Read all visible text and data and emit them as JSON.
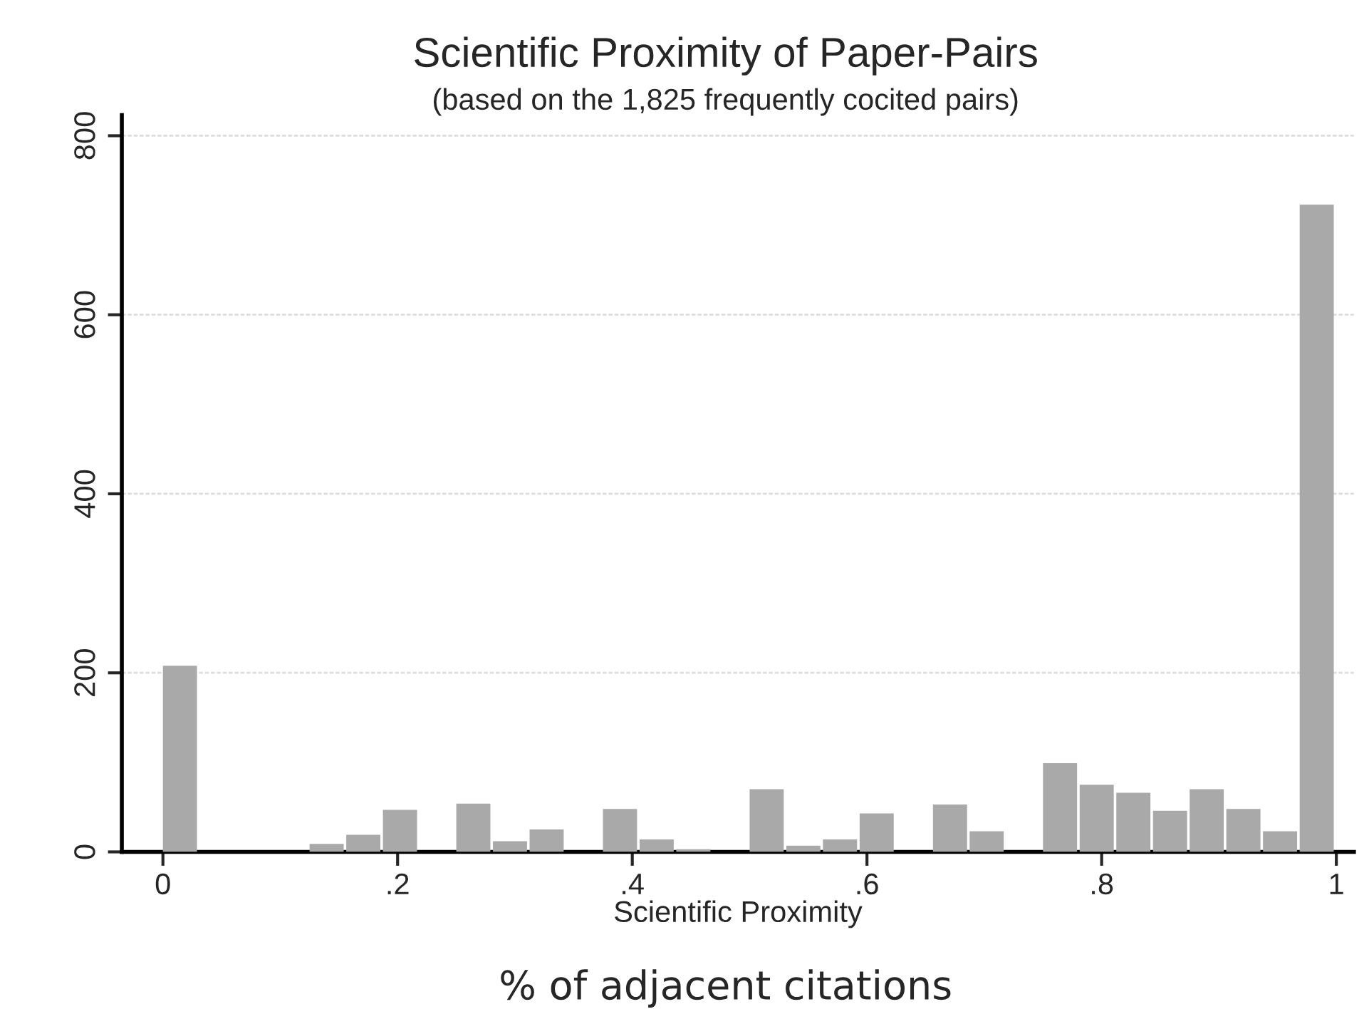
{
  "chart_data": {
    "type": "histogram",
    "title": "Scientific Proximity of Paper-Pairs",
    "subtitle": "(based on the 1,825 frequently cocited pairs)",
    "xlabel": "Scientific Proximity",
    "annotations": [
      "% of adjacent citations"
    ],
    "bins": [
      0,
      0.03125,
      0.0625,
      0.09375,
      0.125,
      0.15625,
      0.1875,
      0.21875,
      0.25,
      0.28125,
      0.3125,
      0.34375,
      0.375,
      0.40625,
      0.4375,
      0.46875,
      0.5,
      0.53125,
      0.5625,
      0.59375,
      0.625,
      0.65625,
      0.6875,
      0.71875,
      0.75,
      0.78125,
      0.8125,
      0.84375,
      0.875,
      0.90625,
      0.9375,
      0.96875,
      1
    ],
    "values": [
      208,
      0,
      0,
      0,
      9,
      19,
      47,
      0,
      54,
      12,
      25,
      0,
      48,
      14,
      3,
      0,
      70,
      7,
      14,
      43,
      0,
      53,
      23,
      null,
      99,
      75,
      66,
      46,
      70,
      48,
      23,
      723
    ],
    "color": "#a9a9a9",
    "xlim": [
      -0.035,
      1.015
    ],
    "xticks": [
      0,
      {
        "value": 0.2,
        "label": ".2"
      },
      {
        "value": 0.4,
        "label": ".4"
      },
      {
        "value": 0.6,
        "label": ".6"
      },
      {
        "value": 0.8,
        "label": ".8"
      },
      1
    ],
    "ylim": [
      0,
      823
    ],
    "yticks": [
      0,
      200,
      400,
      600,
      800
    ],
    "grid": "y"
  }
}
